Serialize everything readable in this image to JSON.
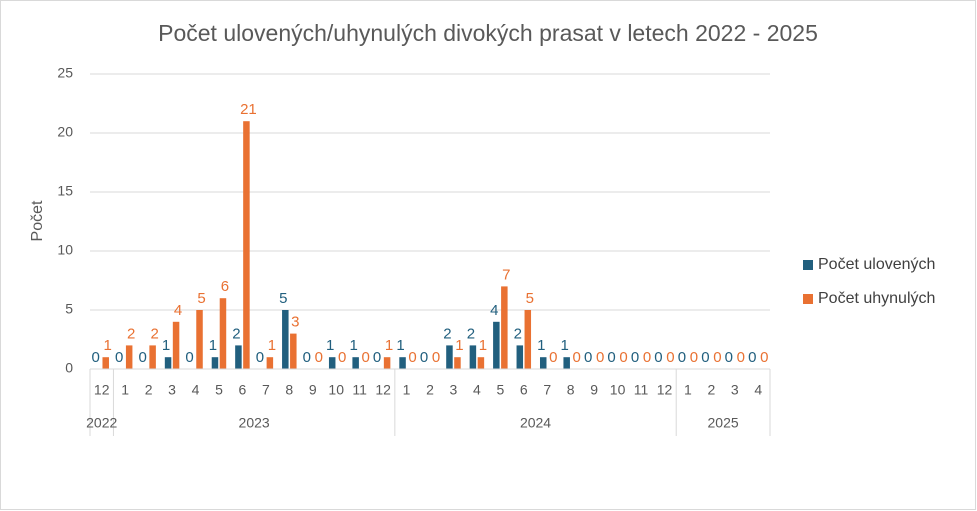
{
  "chart_data": {
    "type": "bar",
    "title": "Počet ulovených/uhynulých divokých prasat v letech 2022 - 2025",
    "y_label": "Počet",
    "category_groups": [
      {
        "label": "2022",
        "categories": [
          "12"
        ]
      },
      {
        "label": "2023",
        "categories": [
          "1",
          "2",
          "3",
          "4",
          "5",
          "6",
          "7",
          "8",
          "9",
          "10",
          "11",
          "12"
        ]
      },
      {
        "label": "2024",
        "categories": [
          "1",
          "2",
          "3",
          "4",
          "5",
          "6",
          "7",
          "8",
          "9",
          "10",
          "11",
          "12"
        ]
      },
      {
        "label": "2025",
        "categories": [
          "1",
          "2",
          "3",
          "4"
        ]
      }
    ],
    "series": [
      {
        "name": "Počet ulovených",
        "color": "#215f7e",
        "values": [
          0,
          0,
          0,
          1,
          0,
          1,
          2,
          0,
          5,
          0,
          1,
          1,
          0,
          1,
          0,
          2,
          2,
          4,
          2,
          1,
          1,
          0,
          0,
          0,
          0,
          0,
          0,
          0,
          0
        ]
      },
      {
        "name": "Počet uhynulých",
        "color": "#e97132",
        "values": [
          1,
          2,
          2,
          4,
          5,
          6,
          21,
          1,
          3,
          0,
          0,
          0,
          1,
          0,
          0,
          1,
          1,
          7,
          5,
          0,
          0,
          0,
          0,
          0,
          0,
          0,
          0,
          0,
          0
        ]
      }
    ],
    "ylim": [
      0,
      25
    ],
    "yticks": [
      0,
      5,
      10,
      15,
      20,
      25
    ],
    "grid": true,
    "legend": "right"
  }
}
